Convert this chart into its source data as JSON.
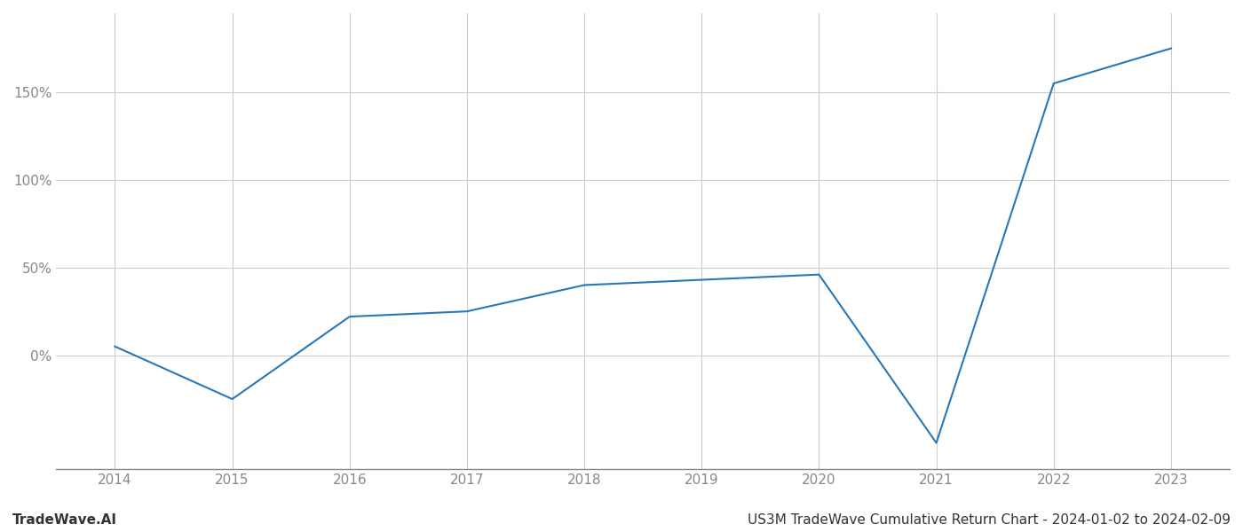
{
  "x_values": [
    2014,
    2015,
    2016,
    2017,
    2018,
    2019,
    2020,
    2021,
    2022,
    2023
  ],
  "y_values": [
    5,
    -25,
    22,
    25,
    40,
    43,
    46,
    -50,
    155,
    175
  ],
  "line_color": "#2878b8",
  "line_width": 1.5,
  "background_color": "#ffffff",
  "grid_color": "#cccccc",
  "title": "US3M TradeWave Cumulative Return Chart - 2024-01-02 to 2024-02-09",
  "watermark": "TradeWave.AI",
  "ylim": [
    -65,
    195
  ],
  "yticks": [
    0,
    50,
    100,
    150
  ],
  "ytick_labels": [
    "0%",
    "50%",
    "100%",
    "150%"
  ],
  "xlim": [
    2013.5,
    2023.5
  ],
  "xticks": [
    2014,
    2015,
    2016,
    2017,
    2018,
    2019,
    2020,
    2021,
    2022,
    2023
  ],
  "title_fontsize": 11,
  "tick_fontsize": 11,
  "watermark_fontsize": 11,
  "spine_color": "#888888"
}
